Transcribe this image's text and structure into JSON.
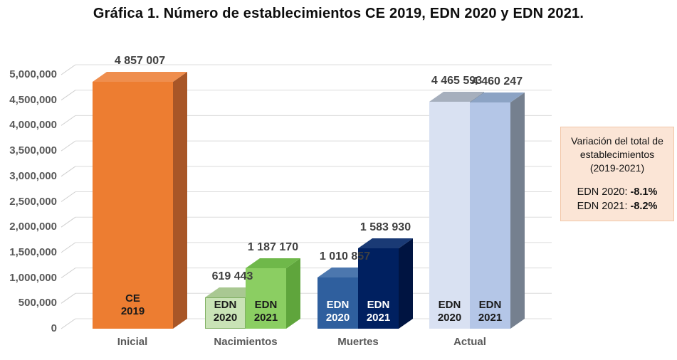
{
  "title": "Gráfica 1. Número de establecimientos CE 2019, EDN 2020 y EDN 2021.",
  "chart_data": {
    "type": "bar",
    "title": "Gráfica 1. Número de establecimientos CE 2019, EDN 2020 y EDN 2021.",
    "xlabel": "",
    "ylabel": "",
    "ylim": [
      0,
      5000000
    ],
    "ytick_step": 500000,
    "grid": true,
    "style": "3d-bars",
    "yticks": [
      0,
      500000,
      1000000,
      1500000,
      2000000,
      2500000,
      3000000,
      3500000,
      4000000,
      4500000,
      5000000
    ],
    "yticklabels": [
      "0",
      "500,000",
      "1,000,000",
      "1,500,000",
      "2,000,000",
      "2,500,000",
      "3,000,000",
      "3,500,000",
      "4,000,000",
      "4,500,000",
      "5,000,000"
    ],
    "categories": [
      "Inicial",
      "Nacimientos",
      "Muertes",
      "Actual"
    ],
    "groups": [
      {
        "category": "Inicial",
        "bars": [
          {
            "series": "CE 2019",
            "label_lines": [
              "CE",
              "2019"
            ],
            "value": 4857007,
            "value_label": "4 857 007",
            "colors": {
              "front": "#ED7D31",
              "top": "#EF8E4E",
              "side": "#A85627"
            },
            "text_color": "#1a1a1a"
          }
        ]
      },
      {
        "category": "Nacimientos",
        "bars": [
          {
            "series": "EDN 2020",
            "label_lines": [
              "EDN",
              "2020"
            ],
            "value": 619443,
            "value_label": "619 443",
            "colors": {
              "front": "#C9E3B6",
              "top": "#A9C892",
              "side": "#93BA78",
              "border": "#7FAF62"
            },
            "text_color": "#1a1a1a"
          },
          {
            "series": "EDN 2021",
            "label_lines": [
              "EDN",
              "2021"
            ],
            "value": 1187170,
            "value_label": "1 187 170",
            "colors": {
              "front": "#8BCE62",
              "top": "#6FB84A",
              "side": "#5FA53C"
            },
            "text_color": "#1a1a1a"
          }
        ]
      },
      {
        "category": "Muertes",
        "bars": [
          {
            "series": "EDN 2020",
            "label_lines": [
              "EDN",
              "2020"
            ],
            "value": 1010857,
            "value_label": "1 010 857",
            "colors": {
              "front": "#2F5F9E",
              "top": "#4C77AE",
              "side": "#1F4479"
            },
            "text_color": "#FFFFFF"
          },
          {
            "series": "EDN 2021",
            "label_lines": [
              "EDN",
              "2021"
            ],
            "value": 1583930,
            "value_label": "1 583 930",
            "colors": {
              "front": "#002060",
              "top": "#1A3A75",
              "side": "#001441"
            },
            "text_color": "#FFFFFF"
          }
        ]
      },
      {
        "category": "Actual",
        "bars": [
          {
            "series": "EDN 2020",
            "label_lines": [
              "EDN",
              "2020"
            ],
            "value": 4465593,
            "value_label": "4 465 593",
            "colors": {
              "front": "#D9E1F2",
              "top": "#A6AFBD",
              "side": "#8793A3"
            },
            "text_color": "#1a1a1a"
          },
          {
            "series": "EDN 2021",
            "label_lines": [
              "EDN",
              "2021"
            ],
            "value": 4460247,
            "value_label": "4 460 247",
            "colors": {
              "front": "#B4C6E7",
              "top": "#8CA3C4",
              "side": "#75808F"
            },
            "text_color": "#1a1a1a"
          }
        ]
      }
    ]
  },
  "annotation": {
    "title_lines": [
      "Variación del total de",
      "establecimientos",
      "(2019-2021)"
    ],
    "entries": [
      {
        "label": "EDN 2020:",
        "value": "-8.1%"
      },
      {
        "label": "EDN 2021:",
        "value": "-8.2%"
      }
    ],
    "bg": "#FBE5D6",
    "border": "#F2C7A8"
  },
  "colors": {
    "gridline": "#DCDCDC",
    "tick_diagonal": "#CFCFCF",
    "axis_text": "#595959",
    "value_text": "#404040"
  }
}
